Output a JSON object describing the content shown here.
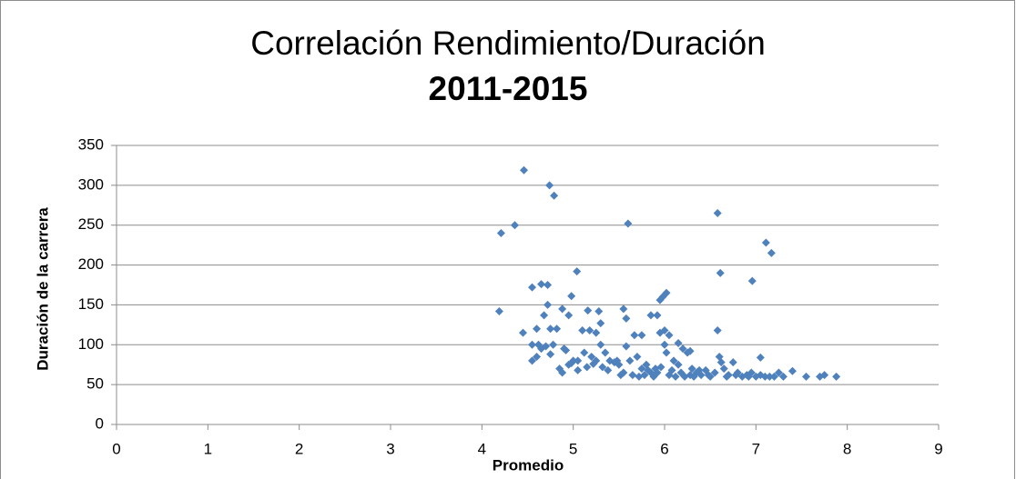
{
  "chart_data": {
    "type": "scatter",
    "title": [
      "Correlación Rendimiento/Duración",
      "2011-2015"
    ],
    "xlabel": "Promedio",
    "ylabel": "Duración de la carrera",
    "xlim": [
      0,
      9
    ],
    "xticks": [
      0,
      1,
      2,
      3,
      4,
      5,
      6,
      7,
      8,
      9
    ],
    "ylim": [
      0,
      350
    ],
    "yticks": [
      0,
      50,
      100,
      150,
      200,
      250,
      300,
      350
    ],
    "grid": true,
    "series": [
      {
        "name": "Duración",
        "color": "#4f81bd",
        "x": [
          4.46,
          4.74,
          4.79,
          4.36,
          4.21,
          5.6,
          6.58,
          7.11,
          7.17,
          6.61,
          6.96,
          5.04,
          4.19,
          4.55,
          4.65,
          4.72,
          4.98,
          4.72,
          4.88,
          4.95,
          4.68,
          5.16,
          5.28,
          5.55,
          5.58,
          5.85,
          5.92,
          5.95,
          5.98,
          6.02,
          5.67,
          5.75,
          5.3,
          4.45,
          4.6,
          4.75,
          4.82,
          4.62,
          4.55,
          4.65,
          4.7,
          4.78,
          4.9,
          4.55,
          4.6,
          4.75,
          4.85,
          4.88,
          4.95,
          5.05,
          5.1,
          5.18,
          5.25,
          5.3,
          5.35,
          5.4,
          5.45,
          5.5,
          5.55,
          5.58,
          5.62,
          5.7,
          5.75,
          5.8,
          5.85,
          5.9,
          5.95,
          6.0,
          6.05,
          6.0,
          6.02,
          6.1,
          6.15,
          6.2,
          6.25,
          6.3,
          6.35,
          6.4,
          6.45,
          6.5,
          6.55,
          6.58,
          6.6,
          6.62,
          6.65,
          6.7,
          6.75,
          6.8,
          6.85,
          6.9,
          6.95,
          7.0,
          7.05,
          7.1,
          7.15,
          7.2,
          7.25,
          7.3,
          7.4,
          7.55,
          7.7,
          7.75,
          7.88,
          5.65,
          5.72,
          5.78,
          5.82,
          5.88,
          5.92,
          5.96,
          6.05,
          6.08,
          6.12,
          6.18,
          6.22,
          6.28,
          6.32,
          6.38,
          6.48,
          5.2,
          5.25,
          5.15,
          5.0,
          5.05,
          5.32,
          5.38,
          5.48,
          5.52,
          4.98,
          5.12,
          5.22,
          4.92,
          6.68,
          6.78,
          7.05,
          6.92,
          6.15,
          6.28
        ],
        "values": [
          319,
          300,
          287,
          250,
          240,
          252,
          265,
          228,
          215,
          190,
          180,
          192,
          142,
          172,
          176,
          175,
          161,
          150,
          145,
          137,
          137,
          143,
          142,
          145,
          133,
          137,
          137,
          156,
          160,
          165,
          112,
          112,
          127,
          115,
          120,
          120,
          120,
          100,
          100,
          95,
          98,
          100,
          95,
          80,
          85,
          88,
          70,
          65,
          75,
          80,
          118,
          118,
          115,
          100,
          90,
          80,
          78,
          75,
          65,
          98,
          80,
          85,
          70,
          75,
          65,
          70,
          115,
          118,
          112,
          100,
          90,
          80,
          75,
          95,
          90,
          70,
          65,
          62,
          68,
          60,
          65,
          118,
          85,
          78,
          70,
          62,
          78,
          65,
          60,
          62,
          65,
          60,
          84,
          60,
          60,
          60,
          65,
          60,
          67,
          60,
          60,
          62,
          60,
          62,
          60,
          62,
          68,
          60,
          65,
          72,
          62,
          68,
          60,
          65,
          60,
          62,
          60,
          68,
          62,
          85,
          80,
          72,
          80,
          68,
          72,
          68,
          80,
          62,
          77,
          90,
          76,
          93,
          60,
          62,
          62,
          60,
          102,
          92
        ]
      }
    ]
  }
}
